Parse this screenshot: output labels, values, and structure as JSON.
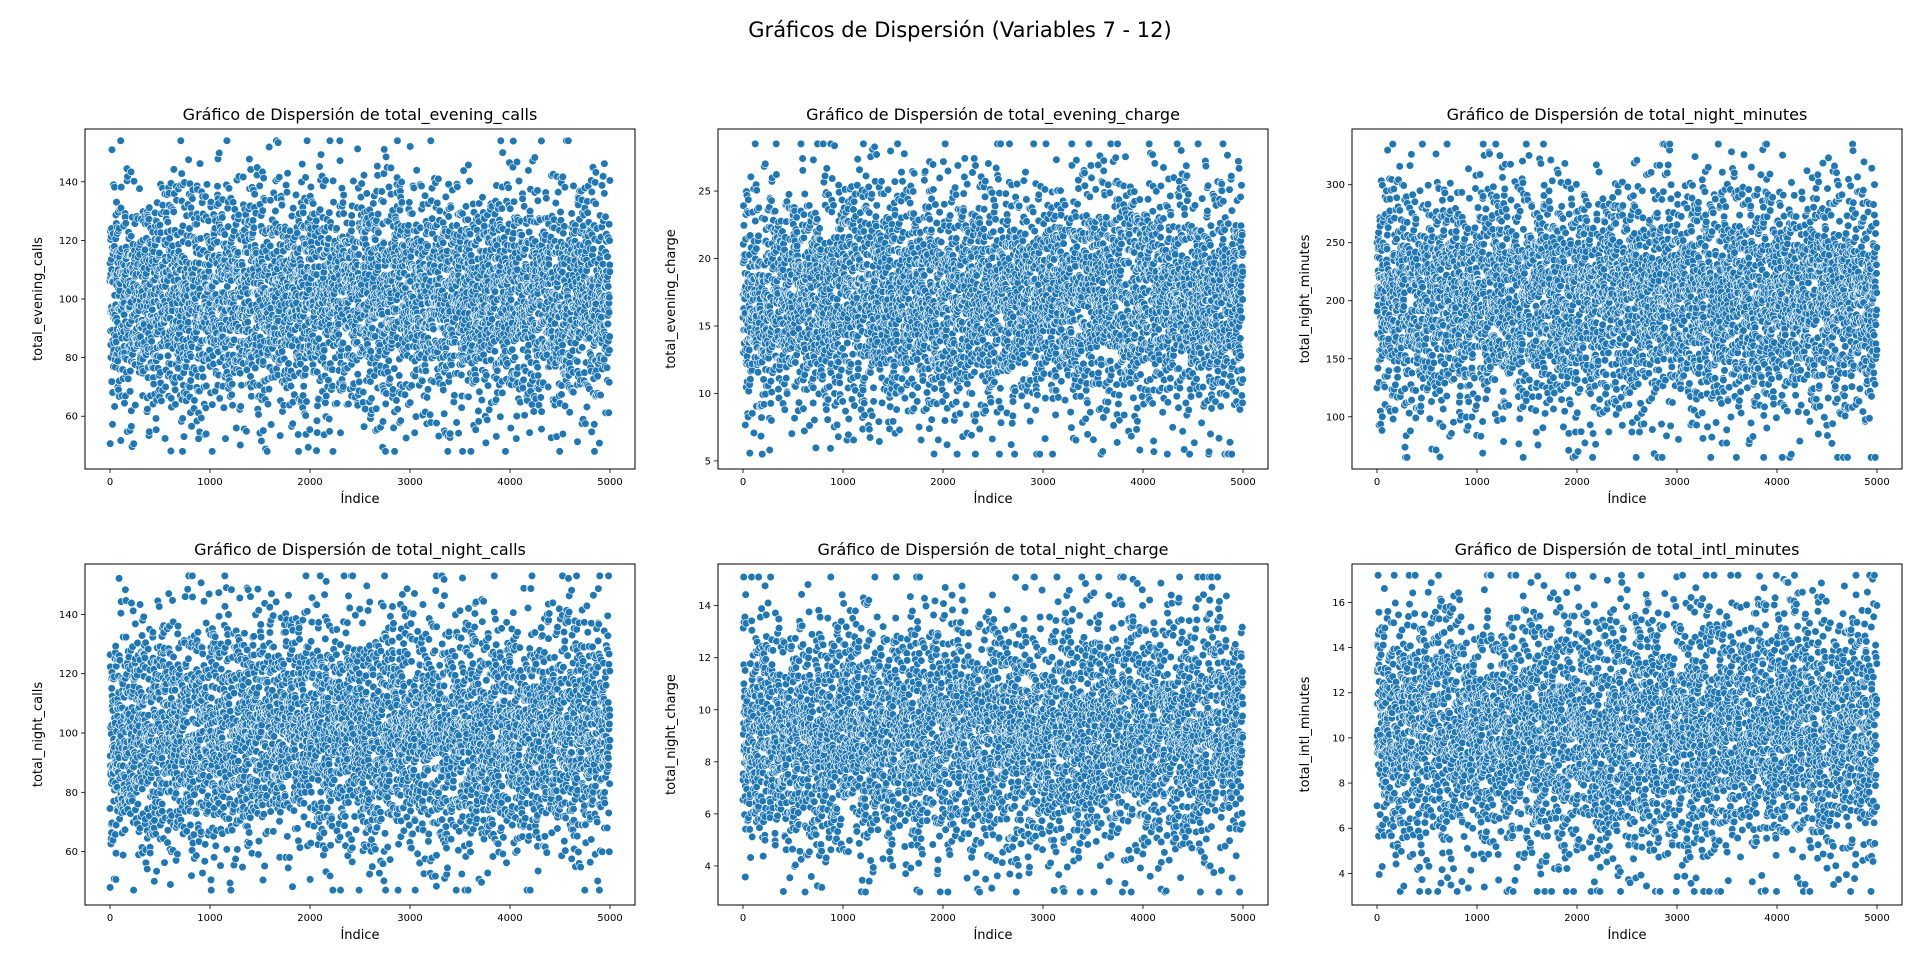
{
  "figure": {
    "suptitle": "Gráficos de Dispersión (Variables 7 - 12)"
  },
  "colors": {
    "marker": "#1f77b4",
    "marker_edge": "#ffffff",
    "axes": "#000000",
    "background": "#ffffff"
  },
  "chart_data": [
    {
      "type": "scatter",
      "title": "Gráfico de Dispersión de total_evening_calls",
      "xlabel": "Índice",
      "ylabel": "total_evening_calls",
      "xlim": [
        -250,
        5250
      ],
      "ylim": [
        42,
        158
      ],
      "xticks": [
        0,
        1000,
        2000,
        3000,
        4000,
        5000
      ],
      "yticks": [
        60,
        80,
        100,
        120,
        140
      ],
      "n_points": 5000,
      "mean": 100,
      "sd": 19.5,
      "min": 48,
      "max": 154,
      "grid": false,
      "legend": "none"
    },
    {
      "type": "scatter",
      "title": "Gráfico de Dispersión de total_evening_charge",
      "xlabel": "Índice",
      "ylabel": "total_evening_charge",
      "xlim": [
        -250,
        5250
      ],
      "ylim": [
        4.4,
        29.6
      ],
      "xticks": [
        0,
        1000,
        2000,
        3000,
        4000,
        5000
      ],
      "yticks": [
        5,
        10,
        15,
        20,
        25
      ],
      "n_points": 5000,
      "mean": 17,
      "sd": 4.3,
      "min": 5.5,
      "max": 28.5,
      "grid": false,
      "legend": "none"
    },
    {
      "type": "scatter",
      "title": "Gráfico de Dispersión de total_night_minutes",
      "xlabel": "Índice",
      "ylabel": "total_night_minutes",
      "xlim": [
        -250,
        5250
      ],
      "ylim": [
        55,
        348
      ],
      "xticks": [
        0,
        1000,
        2000,
        3000,
        4000,
        5000
      ],
      "yticks": [
        100,
        150,
        200,
        250,
        300
      ],
      "n_points": 5000,
      "mean": 200,
      "sd": 50,
      "min": 65,
      "max": 335,
      "grid": false,
      "legend": "none"
    },
    {
      "type": "scatter",
      "title": "Gráfico de Dispersión de total_night_calls",
      "xlabel": "Índice",
      "ylabel": "total_night_calls",
      "xlim": [
        -250,
        5250
      ],
      "ylim": [
        42,
        157
      ],
      "xticks": [
        0,
        1000,
        2000,
        3000,
        4000,
        5000
      ],
      "yticks": [
        60,
        80,
        100,
        120,
        140
      ],
      "n_points": 5000,
      "mean": 100,
      "sd": 19.5,
      "min": 47,
      "max": 153,
      "grid": false,
      "legend": "none"
    },
    {
      "type": "scatter",
      "title": "Gráfico de Dispersión de total_night_charge",
      "xlabel": "Índice",
      "ylabel": "total_night_charge",
      "xlim": [
        -250,
        5250
      ],
      "ylim": [
        2.5,
        15.6
      ],
      "xticks": [
        0,
        1000,
        2000,
        3000,
        4000,
        5000
      ],
      "yticks": [
        4,
        6,
        8,
        10,
        12,
        14
      ],
      "n_points": 5000,
      "mean": 9,
      "sd": 2.25,
      "min": 3,
      "max": 15.1,
      "grid": false,
      "legend": "none"
    },
    {
      "type": "scatter",
      "title": "Gráfico de Dispersión de total_intl_minutes",
      "xlabel": "Índice",
      "ylabel": "total_intl_minutes",
      "xlim": [
        -250,
        5250
      ],
      "ylim": [
        2.6,
        17.7
      ],
      "xticks": [
        0,
        1000,
        2000,
        3000,
        4000,
        5000
      ],
      "yticks": [
        4,
        6,
        8,
        10,
        12,
        14,
        16
      ],
      "n_points": 5000,
      "mean": 10.2,
      "sd": 2.75,
      "min": 3.2,
      "max": 17.2,
      "grid": false,
      "legend": "none"
    }
  ]
}
